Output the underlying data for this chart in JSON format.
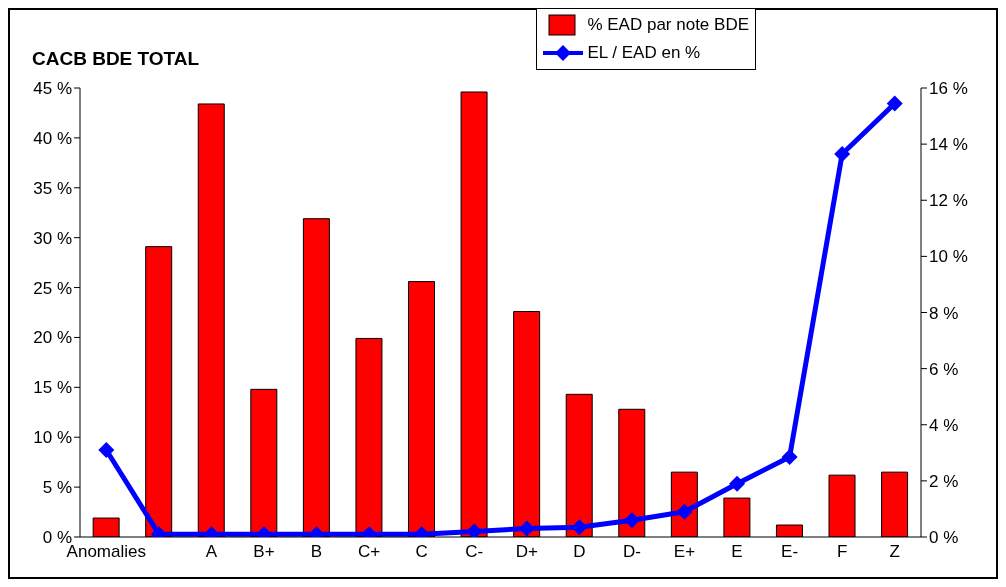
{
  "chart_data": {
    "type": "bar",
    "title": "CACB BDE TOTAL",
    "categories": [
      "Anomalies",
      null,
      "A",
      "B+",
      "B",
      "C+",
      "C",
      "C-",
      "D+",
      "D",
      "D-",
      "E+",
      "E",
      "E-",
      "F",
      "Z"
    ],
    "series": [
      {
        "name": "% EAD par note BDE",
        "color": "#ff0000",
        "values": [
          1.9,
          29.1,
          43.4,
          14.8,
          31.9,
          19.9,
          25.6,
          44.6,
          22.6,
          14.3,
          12.8,
          6.5,
          3.9,
          1.2,
          6.2,
          6.5
        ]
      },
      {
        "name": "EL / EAD en %",
        "type": "line",
        "axis": "y2",
        "color": "#0000ff",
        "marker": "diamond",
        "values": [
          3.1,
          0.1,
          0.1,
          0.1,
          0.1,
          0.1,
          0.1,
          0.2,
          0.3,
          0.35,
          0.6,
          0.9,
          1.9,
          2.85,
          13.65,
          15.45
        ]
      }
    ],
    "ylim": [
      0,
      45
    ],
    "yticks": [
      {
        "value": 0,
        "label": "0 %"
      },
      {
        "value": 5,
        "label": "5 %"
      },
      {
        "value": 10,
        "label": "10 %"
      },
      {
        "value": 15,
        "label": "15 %"
      },
      {
        "value": 20,
        "label": "20 %"
      },
      {
        "value": 25,
        "label": "25 %"
      },
      {
        "value": 30,
        "label": "30 %"
      },
      {
        "value": 35,
        "label": "35 %"
      },
      {
        "value": 40,
        "label": "40 %"
      },
      {
        "value": 45,
        "label": "45 %"
      }
    ],
    "y2lim": [
      0,
      16
    ],
    "y2ticks": [
      {
        "value": 0,
        "label": "0 %"
      },
      {
        "value": 2,
        "label": "2 %"
      },
      {
        "value": 4,
        "label": "4 %"
      },
      {
        "value": 6,
        "label": "6 %"
      },
      {
        "value": 8,
        "label": "8 %"
      },
      {
        "value": 10,
        "label": "10 %"
      },
      {
        "value": 12,
        "label": "12 %"
      },
      {
        "value": 14,
        "label": "14 %"
      },
      {
        "value": 16,
        "label": "16 %"
      }
    ],
    "grid": false,
    "legend": "top right"
  }
}
